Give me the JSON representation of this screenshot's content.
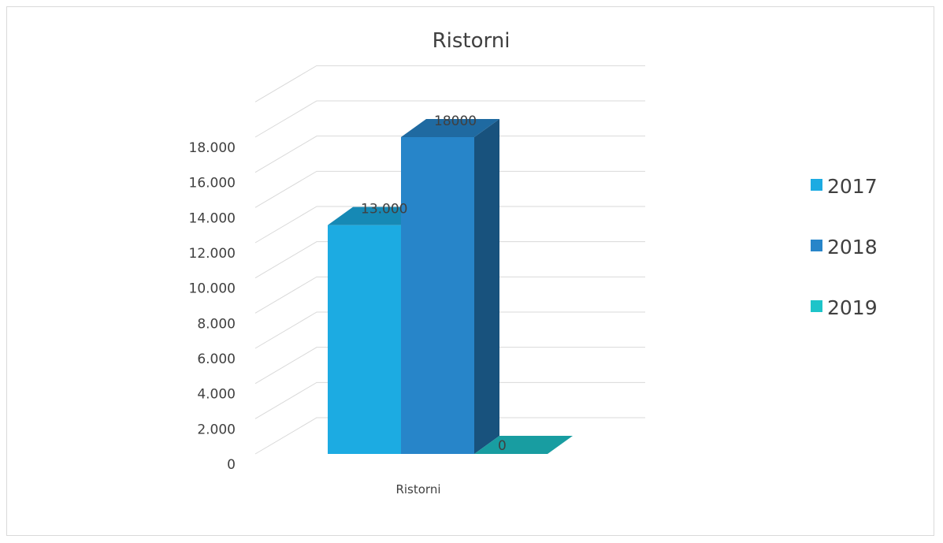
{
  "chart_data": {
    "type": "bar",
    "title": "Ristorni",
    "categories": [
      "Ristorni"
    ],
    "series": [
      {
        "name": "2017",
        "values": [
          13000
        ],
        "label": "13.000",
        "color": "#1cabe2"
      },
      {
        "name": "2018",
        "values": [
          18000
        ],
        "label": "18000",
        "color": "#2785c9"
      },
      {
        "name": "2019",
        "values": [
          0
        ],
        "label": "0",
        "color": "#1ec4c9"
      }
    ],
    "ylim": [
      0,
      18000
    ],
    "yticks": [
      "0",
      "2.000",
      "4.000",
      "6.000",
      "8.000",
      "10.000",
      "12.000",
      "14.000",
      "16.000",
      "18.000"
    ],
    "grid": true,
    "legend": "right",
    "style": "3d-column"
  }
}
